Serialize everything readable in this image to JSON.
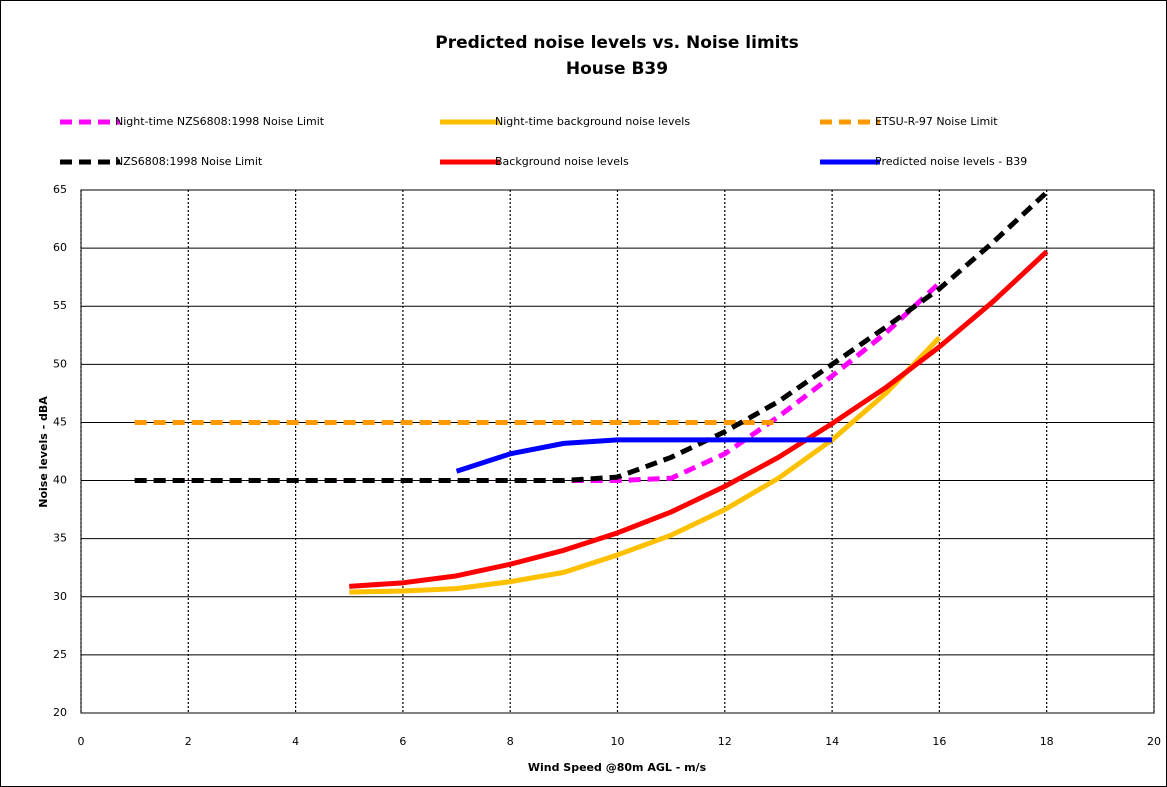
{
  "chart_data": {
    "type": "line",
    "title": "Predicted noise levels vs. Noise limits",
    "subtitle": "House B39",
    "x_label": "Wind Speed @80m  AGL - m/s",
    "y_label": "Noise levels - dBA",
    "x": [
      1,
      2,
      3,
      4,
      5,
      6,
      7,
      8,
      9,
      10,
      11,
      12,
      13,
      14,
      15,
      16,
      17,
      18
    ],
    "xlim": [
      0,
      20
    ],
    "xticks": [
      0,
      2,
      4,
      6,
      8,
      10,
      12,
      14,
      16,
      18,
      20
    ],
    "ylim": [
      20,
      65
    ],
    "yticks": [
      20,
      25,
      30,
      35,
      40,
      45,
      50,
      55,
      60,
      65
    ],
    "grid": true,
    "series": [
      {
        "name": "Night-time NZS6808:1998 Noise Limit",
        "color": "#ff00ff",
        "dashed": true,
        "values": [
          40,
          40,
          40,
          40,
          40,
          40,
          40,
          40,
          40,
          40,
          40.2,
          42.3,
          45.5,
          49,
          52.7,
          57,
          null,
          null
        ]
      },
      {
        "name": "Night-time background noise levels",
        "color": "#ffc000",
        "dashed": false,
        "values": [
          null,
          null,
          null,
          null,
          30.4,
          30.5,
          30.7,
          31.3,
          32.1,
          33.6,
          35.3,
          37.5,
          40.2,
          43.5,
          47.5,
          52.3,
          null,
          null
        ]
      },
      {
        "name": "ETSU-R-97 Noise Limit",
        "color": "#ff9900",
        "dashed": true,
        "values": [
          45,
          45,
          45,
          45,
          45,
          45,
          45,
          45,
          45,
          45,
          45,
          45,
          45,
          null,
          null,
          null,
          null,
          null
        ]
      },
      {
        "name": "NZS6808:1998 Noise Limit",
        "color": "#000000",
        "dashed": true,
        "values": [
          40,
          40,
          40,
          40,
          40,
          40,
          40,
          40,
          40,
          40.3,
          42,
          44.2,
          46.8,
          50,
          53.2,
          56.5,
          60.5,
          64.8
        ]
      },
      {
        "name": "Background noise levels",
        "color": "#ff0000",
        "dashed": false,
        "values": [
          null,
          null,
          null,
          null,
          30.9,
          31.2,
          31.8,
          32.8,
          34,
          35.5,
          37.3,
          39.5,
          42,
          44.9,
          48,
          51.5,
          55.4,
          59.7
        ]
      },
      {
        "name": "Predicted noise levels - B39",
        "color": "#0000ff",
        "dashed": false,
        "values": [
          null,
          null,
          null,
          null,
          null,
          null,
          40.8,
          42.3,
          43.2,
          43.5,
          43.5,
          43.5,
          43.5,
          43.5,
          null,
          null,
          null,
          null
        ]
      }
    ]
  }
}
